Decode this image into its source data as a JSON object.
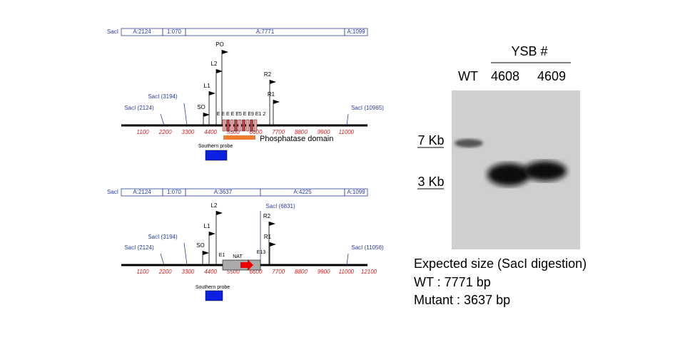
{
  "maps": [
    {
      "header": {
        "left": "SacI",
        "segments": [
          "A:2124",
          "1:070",
          "A:7771",
          "A:1099"
        ]
      },
      "ticks": [
        "1100",
        "2200",
        "3300",
        "4400",
        "5500",
        "6600",
        "7700",
        "8800",
        "9900",
        "11000"
      ],
      "sites": [
        "SacI (2124)",
        "SacI (3194)",
        "SacI (10965)"
      ],
      "primers": [
        "SO",
        "L1",
        "L2",
        "PO",
        "R2",
        "R1"
      ],
      "exons": "E E E E E5 E E9 E1 2",
      "domain": "Phosphatase domain",
      "probe": "Southern probe"
    },
    {
      "header": {
        "left": "SacI",
        "segments": [
          "A:2124",
          "1:070",
          "A:3637",
          "A:4225",
          "A:1099"
        ]
      },
      "ticks": [
        "1100",
        "2200",
        "3300",
        "4400",
        "5500",
        "6600",
        "7700",
        "8800",
        "9900",
        "11000",
        "12100"
      ],
      "sites": [
        "SacI (2124)",
        "SacI (3194)",
        "SacI (6831)",
        "SacI (11056)"
      ],
      "primers": [
        "SO",
        "L1",
        "L2",
        "R2",
        "R1"
      ],
      "exons": [
        "E1",
        "NAT",
        "E13"
      ],
      "probe": "Southern probe"
    }
  ],
  "gel": {
    "group": "YSB #",
    "lanes": [
      "WT",
      "4608",
      "4609"
    ],
    "markers": [
      "7 Kb",
      "3 Kb"
    ]
  },
  "caption": [
    "Expected size (SacI digestion)",
    "WT : 7771 bp",
    "Mutant : 3637 bp"
  ]
}
